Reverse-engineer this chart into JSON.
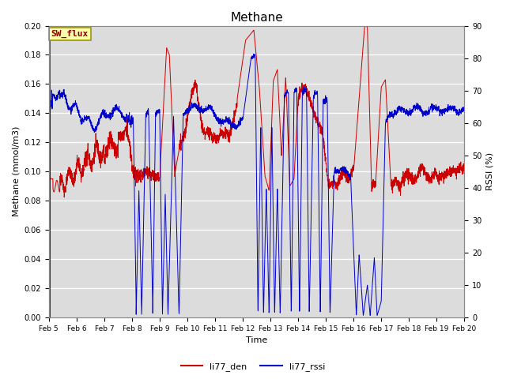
{
  "title": "Methane",
  "xlabel": "Time",
  "ylabel_left": "Methane (mmol/m3)",
  "ylabel_right": "RSSI (%)",
  "legend_label1": "li77_den",
  "legend_label2": "li77_rssi",
  "annotation": "SW_flux",
  "ylim_left": [
    0.0,
    0.2
  ],
  "ylim_right": [
    0,
    90
  ],
  "yticks_left": [
    0.0,
    0.02,
    0.04,
    0.06,
    0.08,
    0.1,
    0.12,
    0.14,
    0.16,
    0.18,
    0.2
  ],
  "yticks_right": [
    0,
    10,
    20,
    30,
    40,
    50,
    60,
    70,
    80,
    90
  ],
  "color_den": "#cc0000",
  "color_rssi": "#0000cc",
  "bg_color": "#dcdcdc",
  "grid_color": "#ffffff",
  "annotation_bg": "#ffffaa",
  "annotation_border": "#999900",
  "annotation_text_color": "#880000",
  "xtick_labels": [
    "Feb 5",
    "Feb 6",
    "Feb 7",
    "Feb 8",
    "Feb 9",
    "Feb 10",
    "Feb 11",
    "Feb 12",
    "Feb 13",
    "Feb 14",
    "Feb 15",
    "Feb 16",
    "Feb 17",
    "Feb 18",
    "Feb 19",
    "Feb 20"
  ],
  "n_points": 3000
}
